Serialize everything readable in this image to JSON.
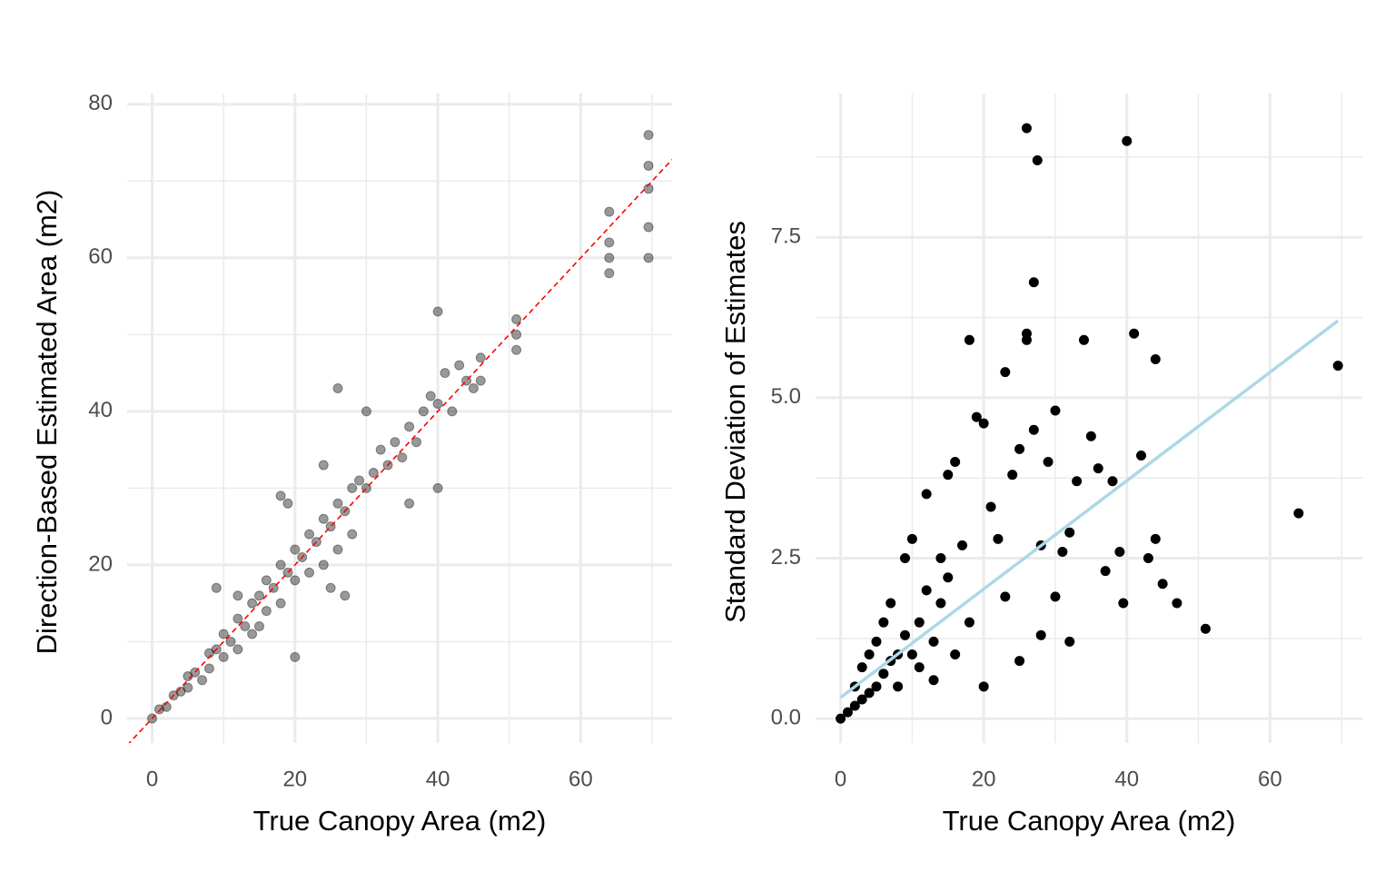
{
  "chart_data": [
    {
      "type": "scatter",
      "x_label": "True Canopy Area (m2)",
      "y_label": "Direction-Based Estimated Area (m2)",
      "xlim": [
        -3.5,
        72.8
      ],
      "ylim": [
        -3.2,
        81.4
      ],
      "xticks": [
        0,
        20,
        40,
        60
      ],
      "yticks": [
        0,
        20,
        40,
        60,
        80
      ],
      "x_minor": [
        10,
        30,
        50,
        70
      ],
      "y_minor": [
        10,
        30,
        50,
        70
      ],
      "grid": true,
      "color": "#000000",
      "opacity": 0.4,
      "reference_line": {
        "slope": 1,
        "intercept": 0,
        "color": "#ff0000"
      },
      "x": [
        0,
        1,
        2,
        3,
        4,
        5,
        5,
        6,
        7,
        8,
        8,
        9,
        10,
        10,
        11,
        12,
        12,
        13,
        14,
        14,
        15,
        15,
        16,
        16,
        17,
        18,
        18,
        19,
        20,
        20,
        21,
        22,
        22,
        23,
        24,
        24,
        25,
        26,
        26,
        26,
        27,
        28,
        28,
        29,
        30,
        30,
        31,
        32,
        33,
        34,
        35,
        36,
        37,
        38,
        39,
        40,
        40,
        40,
        41,
        42,
        43,
        44,
        45,
        46,
        46,
        51,
        51,
        51,
        64,
        64,
        64,
        64,
        69.5,
        69.5,
        69.5,
        69.5,
        69.5,
        18,
        19,
        9,
        12,
        24,
        20,
        25,
        27,
        36
      ],
      "y": [
        0,
        1.2,
        1.5,
        3,
        3.5,
        5.5,
        4,
        6,
        5,
        8.5,
        6.5,
        9,
        11,
        8,
        10,
        13,
        9,
        12,
        15,
        11,
        16,
        12,
        18,
        14,
        17,
        20,
        15,
        19,
        22,
        18,
        21,
        24,
        19,
        23,
        26,
        20,
        25,
        28,
        22,
        43,
        27,
        30,
        24,
        31,
        30,
        40,
        32,
        35,
        33,
        36,
        34,
        38,
        36,
        40,
        42,
        41,
        30,
        53,
        45,
        40,
        46,
        44,
        43,
        47,
        44,
        50,
        52,
        48,
        62,
        66,
        58,
        60,
        60,
        64,
        69,
        72,
        76,
        29,
        28,
        17,
        16,
        33,
        8,
        17,
        16,
        28
      ]
    },
    {
      "type": "scatter",
      "x_label": "True Canopy Area (m2)",
      "y_label": "Standard Deviation of Estimates",
      "xlim": [
        -3.5,
        72.9
      ],
      "ylim": [
        -0.38,
        9.74
      ],
      "xticks": [
        0,
        20,
        40,
        60
      ],
      "yticks": [
        {
          "value": 0,
          "label": "0.0"
        },
        {
          "value": 2.5,
          "label": "2.5"
        },
        {
          "value": 5,
          "label": "5.0"
        },
        {
          "value": 7.5,
          "label": "7.5"
        }
      ],
      "x_minor": [
        10,
        30,
        50,
        70
      ],
      "y_minor": [
        1.25,
        3.75,
        6.25,
        8.75
      ],
      "grid": true,
      "color": "#000000",
      "opacity": 1,
      "fit_line": {
        "x": [
          0,
          69.5
        ],
        "y": [
          0.33,
          6.2
        ],
        "color": "#add8e6"
      },
      "x": [
        0,
        1,
        2,
        2,
        3,
        3,
        4,
        4,
        5,
        5,
        6,
        6,
        7,
        7,
        8,
        8,
        9,
        9,
        10,
        10,
        11,
        11,
        12,
        12,
        13,
        14,
        14,
        15,
        16,
        16,
        17,
        18,
        18,
        19,
        20,
        20,
        21,
        22,
        23,
        24,
        25,
        26,
        26,
        26,
        27,
        27,
        27.5,
        28,
        29,
        30,
        30,
        31,
        32,
        33,
        34,
        35,
        36,
        37,
        38,
        39,
        39.5,
        40,
        41,
        42,
        43,
        44,
        44,
        45,
        47,
        51,
        64,
        69.5,
        13,
        15,
        23,
        25,
        28,
        32
      ],
      "y": [
        0,
        0.1,
        0.2,
        0.5,
        0.3,
        0.8,
        0.4,
        1,
        0.5,
        1.2,
        0.7,
        1.5,
        0.9,
        1.8,
        1,
        0.5,
        1.3,
        2.5,
        1,
        2.8,
        1.5,
        0.8,
        2,
        3.5,
        1.2,
        2.5,
        1.8,
        3.8,
        1,
        4,
        2.7,
        5.9,
        1.5,
        4.7,
        4.6,
        0.5,
        3.3,
        2.8,
        5.4,
        3.8,
        4.2,
        9.2,
        6,
        5.9,
        4.5,
        6.8,
        8.7,
        2.7,
        4,
        4.8,
        1.9,
        2.6,
        2.9,
        3.7,
        5.9,
        4.4,
        3.9,
        2.3,
        3.7,
        2.6,
        1.8,
        9,
        6,
        4.1,
        2.5,
        5.6,
        2.8,
        2.1,
        1.8,
        1.4,
        3.2,
        5.5,
        0.6,
        2.2,
        1.9,
        0.9,
        1.3,
        1.2
      ]
    }
  ]
}
